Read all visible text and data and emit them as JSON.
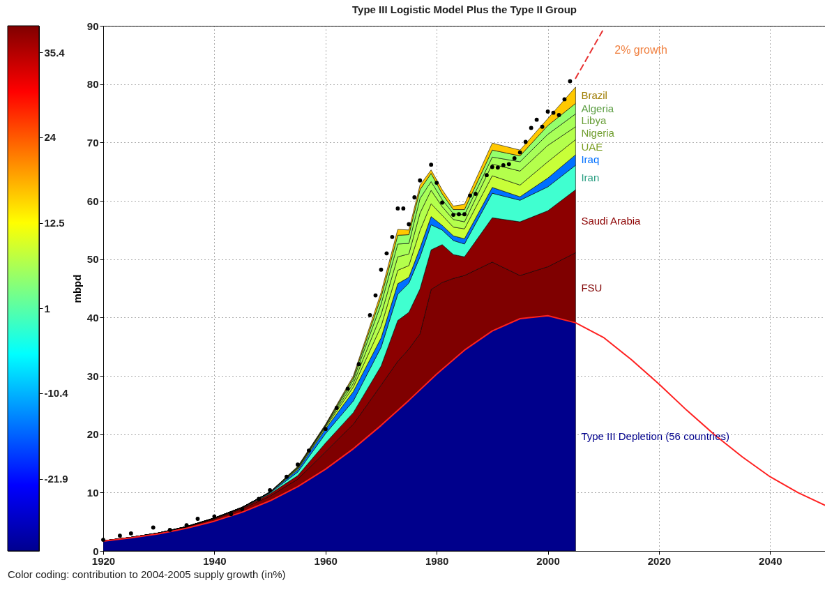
{
  "chart_data": {
    "type": "area",
    "stacked": true,
    "title": "Type III Logistic Model Plus the Type II Group",
    "ylabel": "mbpd",
    "x": [
      1920,
      1925,
      1930,
      1935,
      1940,
      1945,
      1950,
      1955,
      1960,
      1965,
      1970,
      1973,
      1975,
      1977,
      1979,
      1981,
      1983,
      1985,
      1990,
      1995,
      2000,
      2005
    ],
    "series": [
      {
        "name": "Type III Depletion (56 countries)",
        "color": "#00008c",
        "values": [
          1.68,
          2.23,
          2.93,
          3.87,
          5.09,
          6.62,
          8.57,
          11.0,
          14.0,
          17.5,
          21.5,
          24.0,
          25.8,
          27.6,
          29.4,
          31.2,
          32.8,
          34.4,
          37.7,
          39.8,
          40.3,
          39.1
        ]
      },
      {
        "name": "FSU",
        "color": "#7f0000",
        "values": [
          0.05,
          0.1,
          0.15,
          0.25,
          0.4,
          0.6,
          0.8,
          1.3,
          3.0,
          4.2,
          6.9,
          8.5,
          8.8,
          9.6,
          15.4,
          14.8,
          13.9,
          12.8,
          11.8,
          7.4,
          8.4,
          12.0
        ]
      },
      {
        "name": "Saudi Arabia",
        "color": "#8c0000",
        "values": [
          0,
          0,
          0,
          0.05,
          0.1,
          0.15,
          0.4,
          0.6,
          1.5,
          2.0,
          3.3,
          7.0,
          6.3,
          7.7,
          6.8,
          6.5,
          4.1,
          3.2,
          7.6,
          9.2,
          9.6,
          10.8
        ]
      },
      {
        "name": "Iran",
        "color": "#40ffd0",
        "values": [
          0,
          0,
          0,
          0,
          0.05,
          0.05,
          0.15,
          0.6,
          1.6,
          2.0,
          3.2,
          4.5,
          5.0,
          5.5,
          4.3,
          2.5,
          2.4,
          2.2,
          4.2,
          3.7,
          4.1,
          4.2
        ]
      },
      {
        "name": "Iraq",
        "color": "#0070ff",
        "values": [
          0,
          0,
          0,
          0,
          0,
          0.05,
          0.1,
          0.4,
          0.8,
          1.6,
          1.6,
          1.8,
          1.0,
          1.5,
          1.4,
          0.8,
          0.8,
          0.9,
          1.0,
          0.6,
          1.5,
          1.8
        ]
      },
      {
        "name": "UAE",
        "color": "#c8ff38",
        "values": [
          0,
          0,
          0,
          0,
          0,
          0,
          0.05,
          0.2,
          0.3,
          0.8,
          2.0,
          2.3,
          2.0,
          3.0,
          2.2,
          1.7,
          1.5,
          1.7,
          2.0,
          2.0,
          2.8,
          2.6
        ]
      },
      {
        "name": "Nigeria",
        "color": "#b4ff4c",
        "values": [
          0,
          0,
          0,
          0,
          0,
          0,
          0,
          0.1,
          0.2,
          0.6,
          2.0,
          2.3,
          2.0,
          3.0,
          2.3,
          1.5,
          1.3,
          1.2,
          2.0,
          2.4,
          2.8,
          2.2
        ]
      },
      {
        "name": "Libya",
        "color": "#a8ff58",
        "values": [
          0,
          0,
          0,
          0,
          0,
          0,
          0,
          0.1,
          0.1,
          0.6,
          1.8,
          2.2,
          1.8,
          2.5,
          1.5,
          1.2,
          1.0,
          1.2,
          1.2,
          1.6,
          1.9,
          2.2
        ]
      },
      {
        "name": "Algeria",
        "color": "#94ff6c",
        "values": [
          0,
          0,
          0,
          0,
          0,
          0,
          0,
          0.1,
          0.1,
          0.4,
          1.2,
          1.5,
          1.5,
          1.5,
          1.4,
          1.0,
          0.7,
          0.9,
          1.2,
          1.0,
          1.5,
          1.8
        ]
      },
      {
        "name": "Brazil",
        "color": "#ffc800",
        "values": [
          0,
          0,
          0,
          0,
          0,
          0,
          0,
          0.1,
          0.1,
          0.3,
          0.8,
          1.0,
          0.8,
          0.8,
          0.6,
          0.7,
          0.6,
          0.9,
          1.2,
          1.0,
          1.2,
          2.8
        ]
      },
      {
        "type": "line",
        "color": "#ff2020",
        "line_style": "solid",
        "x": [
          1920,
          1925,
          1930,
          1935,
          1940,
          1945,
          1950,
          1955,
          1960,
          1965,
          1970,
          1975,
          1980,
          1985,
          1990,
          1995,
          2000,
          2005,
          2010,
          2015,
          2020,
          2025,
          2030,
          2035,
          2040,
          2045,
          2050
        ],
        "values": [
          1.68,
          2.23,
          2.93,
          3.87,
          5.09,
          6.62,
          8.57,
          11.0,
          14.0,
          17.5,
          21.5,
          25.8,
          30.3,
          34.4,
          37.7,
          39.8,
          40.3,
          39.1,
          36.6,
          32.8,
          28.6,
          24.1,
          19.9,
          16.1,
          12.7,
          10.0,
          7.75
        ]
      },
      {
        "type": "scatter",
        "color": "#000000",
        "marker": "circle",
        "x": [
          1920,
          1923,
          1925,
          1929,
          1932,
          1935,
          1937,
          1940,
          1943,
          1945,
          1948,
          1950,
          1953,
          1955,
          1957,
          1960,
          1962,
          1964,
          1966,
          1968,
          1969,
          1970,
          1971,
          1972,
          1973,
          1974,
          1975,
          1976,
          1977,
          1979,
          1980,
          1981,
          1983,
          1984,
          1985,
          1986,
          1987,
          1989,
          1990,
          1991,
          1992,
          1993,
          1994,
          1995,
          1996,
          1997,
          1998,
          1999,
          2000,
          2001,
          2002,
          2003,
          2004
        ],
        "values": [
          1.9,
          2.6,
          3.0,
          4.0,
          3.6,
          4.4,
          5.5,
          5.9,
          6.3,
          7.2,
          8.9,
          10.4,
          12.7,
          14.8,
          17.2,
          20.9,
          24.5,
          27.8,
          32.0,
          40.4,
          43.8,
          48.2,
          51.0,
          53.8,
          58.7,
          58.7,
          56.0,
          60.6,
          63.5,
          66.2,
          63.1,
          59.7,
          57.6,
          57.7,
          57.7,
          60.9,
          61.2,
          64.4,
          65.8,
          65.7,
          66.1,
          66.3,
          67.3,
          68.3,
          70.1,
          72.5,
          73.9,
          72.7,
          75.3,
          75.1,
          74.7,
          77.4,
          80.5
        ]
      },
      {
        "type": "line",
        "color": "#e83030",
        "line_style": "dashed",
        "x": [
          2005,
          2010
        ],
        "values": [
          81.0,
          89.4
        ]
      }
    ],
    "xlim": [
      1920,
      2050
    ],
    "xticks": [
      1920,
      1940,
      1960,
      1980,
      2000,
      2020,
      2040
    ],
    "ylim": [
      0,
      90
    ],
    "yticks": [
      0,
      10,
      20,
      30,
      40,
      50,
      60,
      70,
      80,
      90
    ],
    "grid": true,
    "clim": [
      -31.6,
      39.0
    ],
    "cticks": [
      -21.9,
      -10.4,
      1,
      12.5,
      24,
      35.4
    ],
    "annotations": [
      {
        "text": "2% growth",
        "x": 2008,
        "y": 87
      },
      "Color coding: contribution to 2004-2005 supply growth (in%)"
    ]
  }
}
